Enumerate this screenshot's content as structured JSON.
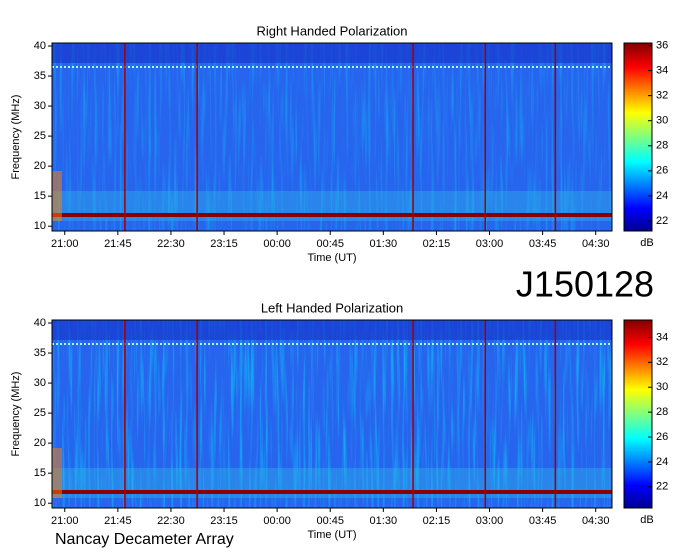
{
  "chart_data": [
    {
      "type": "heatmap",
      "title": "Right Handed Polarization",
      "x_label": "Time (UT)",
      "y_label": "Frequency (MHz)",
      "xlim": [
        20.82,
        28.73
      ],
      "xticks": [
        {
          "value": 21,
          "label": "21:00"
        },
        {
          "value": 21.75,
          "label": "21:45"
        },
        {
          "value": 22.5,
          "label": "22:30"
        },
        {
          "value": 23.25,
          "label": "23:15"
        },
        {
          "value": 24,
          "label": "00:00"
        },
        {
          "value": 24.75,
          "label": "00:45"
        },
        {
          "value": 25.5,
          "label": "01:30"
        },
        {
          "value": 26.25,
          "label": "02:15"
        },
        {
          "value": 27,
          "label": "03:00"
        },
        {
          "value": 27.75,
          "label": "03:45"
        },
        {
          "value": 28.5,
          "label": "04:30"
        }
      ],
      "ylim": [
        9.2,
        40.5
      ],
      "yticks": [
        10,
        15,
        20,
        25,
        30,
        35,
        40
      ],
      "vlines": [
        21.85,
        22.87,
        25.92,
        26.94,
        27.93
      ],
      "colorbar": {
        "label": "dB",
        "zlim": [
          21.2,
          36.2
        ],
        "zticks": [
          22,
          24,
          26,
          28,
          30,
          32,
          34,
          36
        ]
      }
    },
    {
      "type": "heatmap",
      "title": "Left Handed Polarization",
      "x_label": "Time (UT)",
      "y_label": "Frequency (MHz)",
      "xlim": [
        20.82,
        28.73
      ],
      "xticks": [
        {
          "value": 21,
          "label": "21:00"
        },
        {
          "value": 21.75,
          "label": "21:45"
        },
        {
          "value": 22.5,
          "label": "22:30"
        },
        {
          "value": 23.25,
          "label": "23:15"
        },
        {
          "value": 24,
          "label": "00:00"
        },
        {
          "value": 24.75,
          "label": "00:45"
        },
        {
          "value": 25.5,
          "label": "01:30"
        },
        {
          "value": 26.25,
          "label": "02:15"
        },
        {
          "value": 27,
          "label": "03:00"
        },
        {
          "value": 27.75,
          "label": "03:45"
        },
        {
          "value": 28.5,
          "label": "04:30"
        }
      ],
      "ylim": [
        9.2,
        40.5
      ],
      "yticks": [
        10,
        15,
        20,
        25,
        30,
        35,
        40
      ],
      "vlines": [
        21.85,
        22.87,
        25.92,
        26.94,
        27.93
      ],
      "colorbar": {
        "label": "dB",
        "zlim": [
          20.3,
          35.4
        ],
        "zticks": [
          22,
          24,
          26,
          28,
          30,
          32,
          34
        ]
      }
    }
  ],
  "observation_id": "J150128",
  "instrument": "Nancay Decameter Array"
}
